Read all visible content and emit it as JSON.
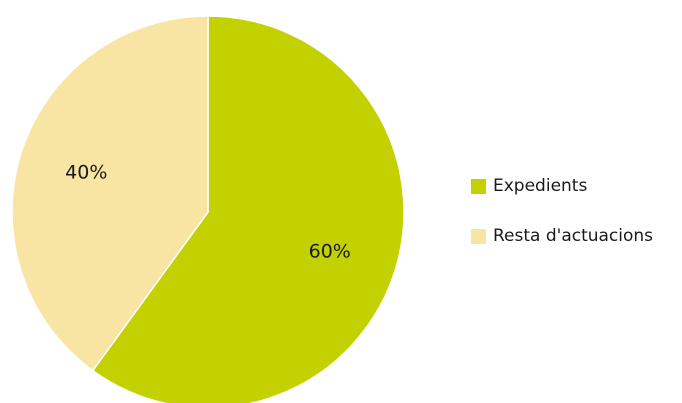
{
  "chart_data": {
    "type": "pie",
    "slices": [
      {
        "name": "Expedients",
        "value": 60,
        "label": "60%",
        "color": "#c4d100"
      },
      {
        "name": "Resta d'actuacions",
        "value": 40,
        "label": "40%",
        "color": "#f8e4a3"
      }
    ],
    "start_angle_deg": 0,
    "direction": "clockwise",
    "legend_position": "right"
  },
  "legend": {
    "items": [
      {
        "label": "Expedients",
        "color": "#c4d100"
      },
      {
        "label": "Resta d'actuacions",
        "color": "#f8e4a3"
      }
    ]
  }
}
